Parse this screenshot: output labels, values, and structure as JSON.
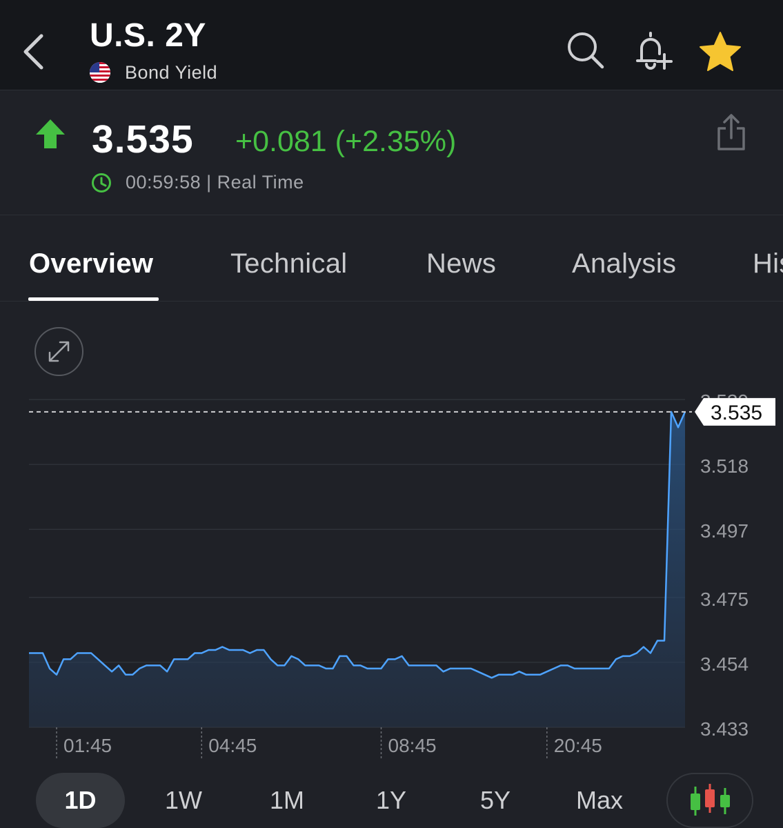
{
  "header": {
    "title": "U.S. 2Y",
    "subtitle": "Bond Yield"
  },
  "quote": {
    "price": "3.535",
    "change": "+0.081 (+2.35%)",
    "time_info": "00:59:58 | Real Time",
    "up_color": "#46c043"
  },
  "tabs": [
    {
      "label": "Overview"
    },
    {
      "label": "Technical"
    },
    {
      "label": "News"
    },
    {
      "label": "Analysis"
    },
    {
      "label": "His"
    }
  ],
  "ranges": [
    {
      "label": "1D"
    },
    {
      "label": "1W"
    },
    {
      "label": "1M"
    },
    {
      "label": "1Y"
    },
    {
      "label": "5Y"
    },
    {
      "label": "Max"
    }
  ],
  "chart_data": {
    "type": "area",
    "y_tick_labels": [
      "3.539",
      "3.518",
      "3.497",
      "3.475",
      "3.454",
      "3.433"
    ],
    "y_ticks": [
      3.539,
      3.518,
      3.497,
      3.475,
      3.454,
      3.433
    ],
    "ylim": [
      3.433,
      3.539
    ],
    "x_tick_labels": [
      "01:45",
      "04:45",
      "08:45",
      "20:45"
    ],
    "x_tick_index": [
      4,
      25,
      51,
      75
    ],
    "last_value_label": "3.535",
    "last_value": 3.535,
    "grid": true,
    "line_color": "#4ea3ff",
    "values": [
      3.457,
      3.457,
      3.457,
      3.452,
      3.45,
      3.455,
      3.455,
      3.457,
      3.457,
      3.457,
      3.455,
      3.453,
      3.451,
      3.453,
      3.45,
      3.45,
      3.452,
      3.453,
      3.453,
      3.453,
      3.451,
      3.455,
      3.455,
      3.455,
      3.457,
      3.457,
      3.458,
      3.458,
      3.459,
      3.458,
      3.458,
      3.458,
      3.457,
      3.458,
      3.458,
      3.455,
      3.453,
      3.453,
      3.456,
      3.455,
      3.453,
      3.453,
      3.453,
      3.452,
      3.452,
      3.456,
      3.456,
      3.453,
      3.453,
      3.452,
      3.452,
      3.452,
      3.455,
      3.455,
      3.456,
      3.453,
      3.453,
      3.453,
      3.453,
      3.453,
      3.451,
      3.452,
      3.452,
      3.452,
      3.452,
      3.451,
      3.45,
      3.449,
      3.45,
      3.45,
      3.45,
      3.451,
      3.45,
      3.45,
      3.45,
      3.451,
      3.452,
      3.453,
      3.453,
      3.452,
      3.452,
      3.452,
      3.452,
      3.452,
      3.452,
      3.455,
      3.456,
      3.456,
      3.457,
      3.459,
      3.457,
      3.461,
      3.461,
      3.535,
      3.53,
      3.535
    ]
  }
}
